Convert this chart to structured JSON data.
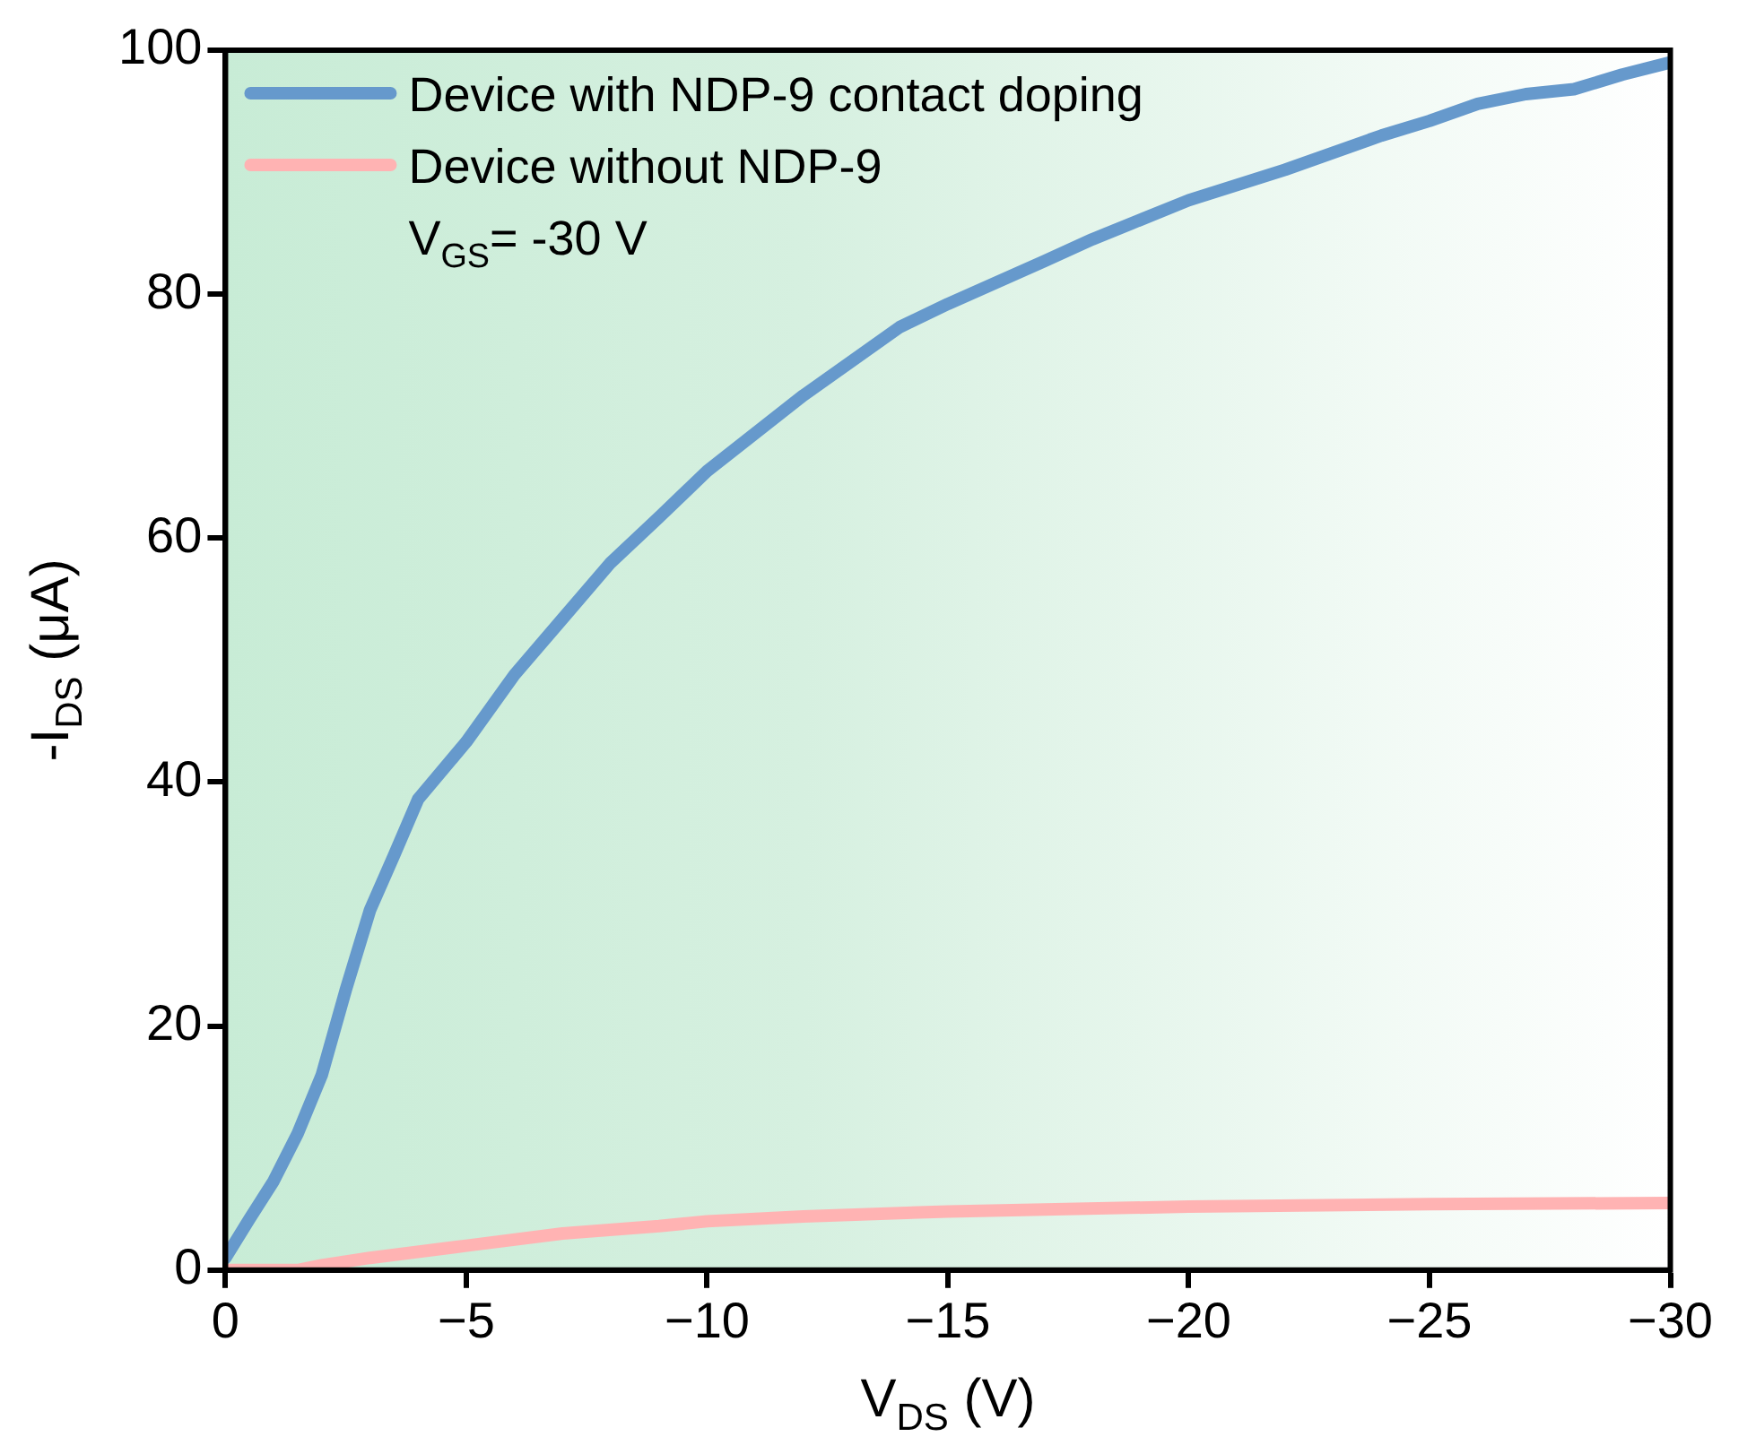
{
  "chart_data": {
    "type": "line",
    "xlabel": "V$_{DS}$ (V)",
    "ylabel": "-I$_{DS}$ (μA)",
    "xlim": [
      0,
      -30
    ],
    "xticks": [
      0,
      {
        "value": -5,
        "label": "−5"
      },
      {
        "value": -10,
        "label": "−10"
      },
      {
        "value": -15,
        "label": "−15"
      },
      {
        "value": -20,
        "label": "−20"
      },
      {
        "value": -25,
        "label": "−25"
      },
      {
        "value": -30,
        "label": "−30"
      }
    ],
    "ylim": [
      0,
      100
    ],
    "yticks": [
      0,
      20,
      40,
      60,
      80,
      100
    ],
    "grid": false,
    "legend": "top left",
    "marker": "none",
    "line_style": "solid",
    "annotations": [
      "V$_{GS}$= -30 V"
    ],
    "series": [
      {
        "name": "Device with NDP-9 contact doping",
        "color": "#6699cc",
        "x": [
          0,
          -0.5,
          -1,
          -1.5,
          -2,
          -2.5,
          -3,
          -3.5,
          -4,
          -5,
          -6,
          -7,
          -8,
          -9,
          -10,
          -12,
          -14,
          -15,
          -17,
          -18,
          -20,
          -22,
          -24,
          -25,
          -26,
          -27,
          -28,
          -29,
          -30
        ],
        "values": [
          1,
          4.2,
          7.3,
          11.2,
          16,
          23,
          29.5,
          34,
          38.6,
          43.3,
          48.8,
          53.4,
          58,
          61.7,
          65.5,
          71.7,
          77.3,
          79.2,
          82.7,
          84.5,
          87.7,
          90.2,
          93,
          94.2,
          95.6,
          96.4,
          96.8,
          98,
          99
        ]
      },
      {
        "name": "Device without NDP-9",
        "color": "#ffb3b3",
        "x": [
          0,
          -1.5,
          -2,
          -3,
          -5,
          -7,
          -9,
          -10,
          -12,
          -15,
          -20,
          -25,
          -30
        ],
        "values": [
          0,
          0,
          0.4,
          1,
          2,
          3,
          3.6,
          4,
          4.4,
          4.8,
          5.2,
          5.4,
          5.5
        ]
      }
    ]
  }
}
